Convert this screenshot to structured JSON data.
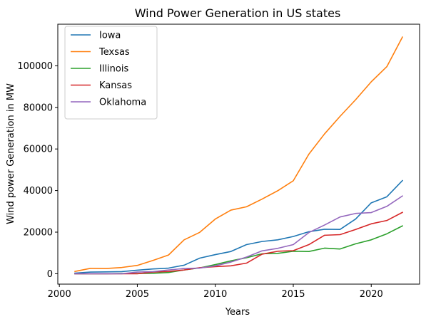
{
  "chart_data": {
    "type": "line",
    "title": "Wind Power Generation in US states",
    "xlabel": "Years",
    "ylabel": "Wind power Generation in MW",
    "xlim": [
      1999.9,
      2023.1
    ],
    "ylim": [
      -5000,
      120000
    ],
    "xticks": [
      2000,
      2005,
      2010,
      2015,
      2020
    ],
    "yticks": [
      0,
      20000,
      40000,
      60000,
      80000,
      100000
    ],
    "grid": false,
    "legend_position": "top-left",
    "x": [
      2001,
      2002,
      2003,
      2004,
      2005,
      2006,
      2007,
      2008,
      2009,
      2010,
      2011,
      2012,
      2013,
      2014,
      2015,
      2016,
      2017,
      2018,
      2019,
      2020,
      2021,
      2022
    ],
    "series": [
      {
        "name": "Iowa",
        "color": "#1f77b4",
        "values": [
          300,
          800,
          900,
          1000,
          1700,
          2300,
          2700,
          4100,
          7500,
          9200,
          10700,
          14000,
          15500,
          16300,
          17900,
          20200,
          21400,
          21300,
          26300,
          34100,
          37000,
          44800
        ]
      },
      {
        "name": "Texsas",
        "color": "#ff7f0e",
        "values": [
          1100,
          2600,
          2500,
          3000,
          4000,
          6400,
          9000,
          16300,
          19900,
          26300,
          30600,
          32200,
          35900,
          39900,
          44700,
          57500,
          67200,
          75700,
          83700,
          92300,
          99600,
          113800
        ]
      },
      {
        "name": "Illinois",
        "color": "#2ca02c",
        "values": [
          0,
          0,
          0,
          100,
          100,
          200,
          600,
          1800,
          2800,
          4400,
          6200,
          7700,
          9600,
          9800,
          10800,
          10700,
          12300,
          11900,
          14400,
          16300,
          19200,
          23000
        ]
      },
      {
        "name": "Kansas",
        "color": "#d62728",
        "values": [
          0,
          0,
          0,
          0,
          0,
          800,
          1100,
          1800,
          2900,
          3400,
          3800,
          5100,
          9400,
          10800,
          11100,
          14000,
          18500,
          18800,
          21300,
          24000,
          25600,
          29500
        ]
      },
      {
        "name": "Oklahoma",
        "color": "#9467bd",
        "values": [
          0,
          0,
          0,
          0,
          800,
          1000,
          1800,
          2500,
          2700,
          3800,
          5600,
          8000,
          11000,
          12200,
          14000,
          19800,
          23400,
          27300,
          29000,
          29400,
          32400,
          37400
        ]
      }
    ]
  }
}
